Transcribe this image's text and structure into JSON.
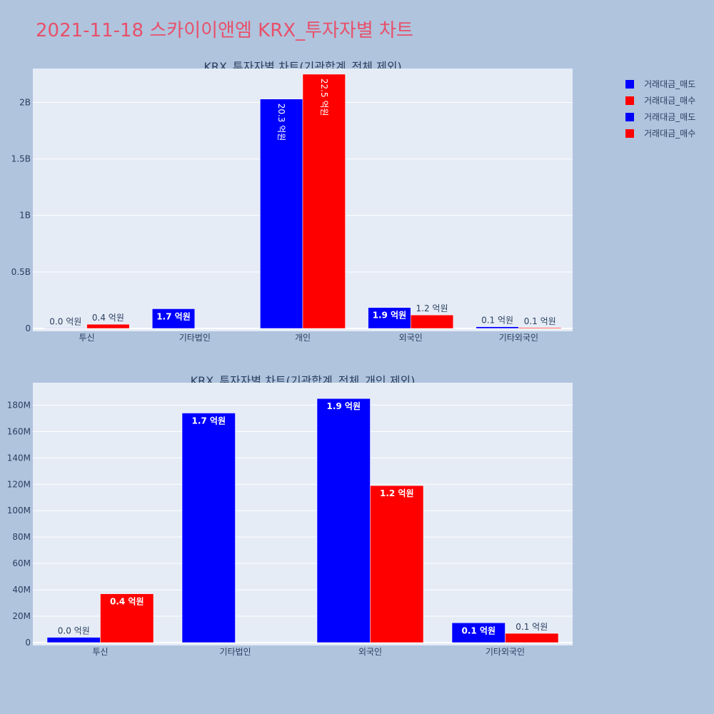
{
  "page_title": "2021-11-18 스카이이앤엠 KRX_투자자별 차트",
  "colors": {
    "sell": "#0000ff",
    "buy": "#ff0000",
    "plot_bg": "#e5ecf6",
    "page_bg": "#b0c4de"
  },
  "legend": [
    {
      "label": "거래대금_매도",
      "color": "#0000ff"
    },
    {
      "label": "거래대금_매수",
      "color": "#ff0000"
    },
    {
      "label": "거래대금_매도",
      "color": "#0000ff"
    },
    {
      "label": "거래대금_매수",
      "color": "#ff0000"
    }
  ],
  "chart_data": [
    {
      "type": "bar",
      "title": "KRX_투자자별 차트(기관합계_전체 제외)",
      "categories": [
        "투신",
        "기타법인",
        "개인",
        "외국인",
        "기타외국인"
      ],
      "ylim": [
        0,
        2300000000
      ],
      "yticks": [
        0,
        500000000,
        1000000000,
        1500000000,
        2000000000
      ],
      "ytick_labels": [
        "0",
        "0.5B",
        "1B",
        "1.5B",
        "2B"
      ],
      "grid": true,
      "series": [
        {
          "name": "거래대금_매도",
          "color": "#0000ff",
          "values": [
            4000000,
            174000000,
            2030000000,
            185000000,
            15000000
          ],
          "labels": [
            "0.0 억원",
            "1.7 억원",
            "20.3 억원",
            "1.9 억원",
            "0.1 억원"
          ]
        },
        {
          "name": "거래대금_매수",
          "color": "#ff0000",
          "values": [
            37000000,
            0,
            2250000000,
            119000000,
            7000000
          ],
          "labels": [
            "0.4 억원",
            "",
            "22.5 억원",
            "1.2 억원",
            "0.1 억원"
          ]
        }
      ]
    },
    {
      "type": "bar",
      "title": "KRX_투자자별 차트(기관합계_전체_개인 제외)",
      "categories": [
        "투신",
        "기타법인",
        "외국인",
        "기타외국인"
      ],
      "ylim": [
        0,
        197000000
      ],
      "yticks": [
        0,
        20000000,
        40000000,
        60000000,
        80000000,
        100000000,
        120000000,
        140000000,
        160000000,
        180000000
      ],
      "ytick_labels": [
        "0",
        "20M",
        "40M",
        "60M",
        "80M",
        "100M",
        "120M",
        "140M",
        "160M",
        "180M"
      ],
      "grid": true,
      "series": [
        {
          "name": "거래대금_매도",
          "color": "#0000ff",
          "values": [
            4000000,
            174000000,
            185000000,
            15000000
          ],
          "labels": [
            "0.0 억원",
            "1.7 억원",
            "1.9 억원",
            "0.1 억원"
          ]
        },
        {
          "name": "거래대금_매수",
          "color": "#ff0000",
          "values": [
            37000000,
            0,
            119000000,
            7000000
          ],
          "labels": [
            "0.4 억원",
            "",
            "1.2 억원",
            "0.1 억원"
          ]
        }
      ]
    }
  ]
}
